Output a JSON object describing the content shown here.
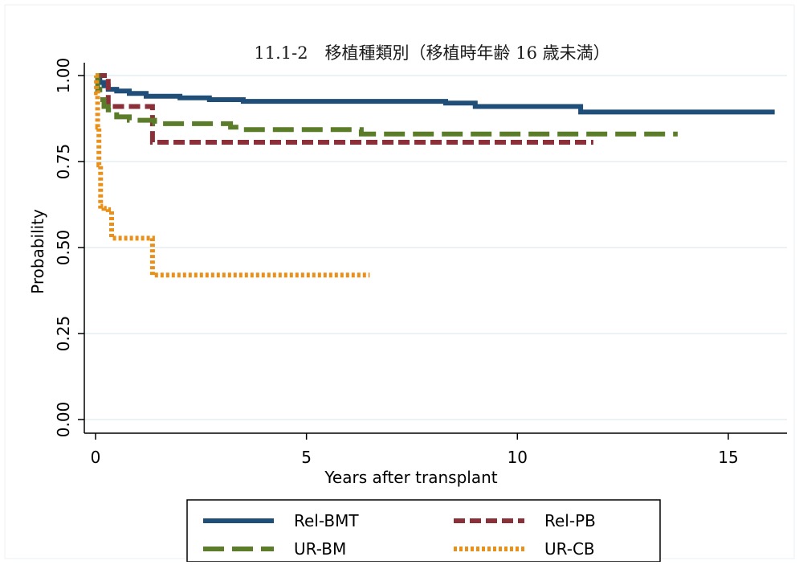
{
  "chart_data": {
    "type": "line",
    "subtype": "kaplan-meier step",
    "title": "11.1-2　移植種類別（移植時年齢 16 歳未満）",
    "xlabel": "Years after transplant",
    "ylabel": "Probability",
    "xlim": [
      0,
      16.2
    ],
    "ylim": [
      0,
      1.03
    ],
    "xticks": [
      0,
      5,
      10,
      15
    ],
    "xtick_labels": [
      "0",
      "5",
      "10",
      "15"
    ],
    "yticks": [
      0,
      0.25,
      0.5,
      0.75,
      1
    ],
    "ytick_labels": [
      "0.00",
      "0.25",
      "0.50",
      "0.75",
      "1.00"
    ],
    "grid": "horizontal",
    "legend_position": "bottom",
    "series": [
      {
        "name": "Rel-BMT",
        "color": "#1f4e79",
        "dash": "solid",
        "x": [
          0,
          0.05,
          0.1,
          0.2,
          0.3,
          0.5,
          0.8,
          1.2,
          2.0,
          2.7,
          3.5,
          8.3,
          9.0,
          11.5,
          16.1
        ],
        "y": [
          1.0,
          0.99,
          0.98,
          0.97,
          0.96,
          0.955,
          0.948,
          0.94,
          0.935,
          0.93,
          0.925,
          0.92,
          0.91,
          0.894,
          0.894
        ]
      },
      {
        "name": "Rel-PB",
        "color": "#8b2f38",
        "dash": "short",
        "x": [
          0,
          0.3,
          1.35,
          11.8
        ],
        "y": [
          1.0,
          0.91,
          0.806,
          0.806
        ]
      },
      {
        "name": "UR-BM",
        "color": "#5b7d2a",
        "dash": "long",
        "x": [
          0,
          0.05,
          0.1,
          0.2,
          0.3,
          0.5,
          0.8,
          1.4,
          3.2,
          3.5,
          6.3,
          13.8
        ],
        "y": [
          1.0,
          0.96,
          0.93,
          0.91,
          0.9,
          0.88,
          0.87,
          0.86,
          0.85,
          0.843,
          0.83,
          0.83
        ]
      },
      {
        "name": "UR-CB",
        "color": "#e8901a",
        "dash": "dot",
        "x": [
          0,
          0.02,
          0.05,
          0.08,
          0.12,
          0.2,
          0.3,
          0.38,
          1.3,
          1.35,
          6.5
        ],
        "y": [
          1.0,
          0.95,
          0.85,
          0.74,
          0.62,
          0.614,
          0.61,
          0.527,
          0.527,
          0.42,
          0.42
        ]
      }
    ]
  }
}
